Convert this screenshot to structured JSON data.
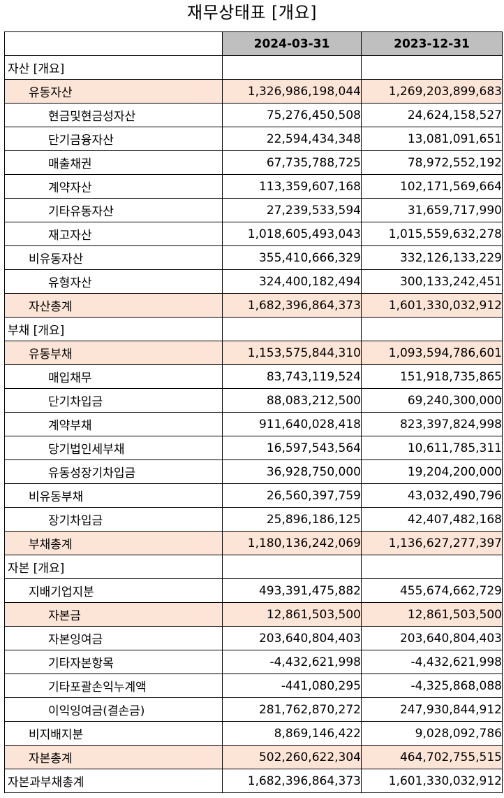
{
  "title": "재무상태표 [개요]",
  "columns": [
    "",
    "2024-03-31",
    "2023-12-31"
  ],
  "colors": {
    "header_bg": "#bfbfbf",
    "highlight_bg": "#fce4d6"
  },
  "rows": [
    {
      "label": "자산 [개요]",
      "indent": 0,
      "highlight": false,
      "v1": "",
      "v2": ""
    },
    {
      "label": "유동자산",
      "indent": 1,
      "highlight": true,
      "v1": "1,326,986,198,044",
      "v2": "1,269,203,899,683"
    },
    {
      "label": "현금및현금성자산",
      "indent": 2,
      "highlight": false,
      "v1": "75,276,450,508",
      "v2": "24,624,158,527"
    },
    {
      "label": "단기금융자산",
      "indent": 2,
      "highlight": false,
      "v1": "22,594,434,348",
      "v2": "13,081,091,651"
    },
    {
      "label": "매출채권",
      "indent": 2,
      "highlight": false,
      "v1": "67,735,788,725",
      "v2": "78,972,552,192"
    },
    {
      "label": "계약자산",
      "indent": 2,
      "highlight": false,
      "v1": "113,359,607,168",
      "v2": "102,171,569,664"
    },
    {
      "label": "기타유동자산",
      "indent": 2,
      "highlight": false,
      "v1": "27,239,533,594",
      "v2": "31,659,717,990"
    },
    {
      "label": "재고자산",
      "indent": 2,
      "highlight": false,
      "v1": "1,018,605,493,043",
      "v2": "1,015,559,632,278"
    },
    {
      "label": "비유동자산",
      "indent": 1,
      "highlight": false,
      "v1": "355,410,666,329",
      "v2": "332,126,133,229"
    },
    {
      "label": "유형자산",
      "indent": 2,
      "highlight": false,
      "v1": "324,400,182,494",
      "v2": "300,133,242,451"
    },
    {
      "label": "자산총계",
      "indent": 1,
      "highlight": true,
      "v1": "1,682,396,864,373",
      "v2": "1,601,330,032,912"
    },
    {
      "label": "부채 [개요]",
      "indent": 0,
      "highlight": false,
      "v1": "",
      "v2": ""
    },
    {
      "label": "유동부채",
      "indent": 1,
      "highlight": true,
      "v1": "1,153,575,844,310",
      "v2": "1,093,594,786,601"
    },
    {
      "label": "매입채무",
      "indent": 2,
      "highlight": false,
      "v1": "83,743,119,524",
      "v2": "151,918,735,865"
    },
    {
      "label": "단기차입금",
      "indent": 2,
      "highlight": false,
      "v1": "88,083,212,500",
      "v2": "69,240,300,000"
    },
    {
      "label": "계약부채",
      "indent": 2,
      "highlight": false,
      "v1": "911,640,028,418",
      "v2": "823,397,824,998"
    },
    {
      "label": "당기법인세부채",
      "indent": 2,
      "highlight": false,
      "v1": "16,597,543,564",
      "v2": "10,611,785,311"
    },
    {
      "label": "유동성장기차입금",
      "indent": 2,
      "highlight": false,
      "v1": "36,928,750,000",
      "v2": "19,204,200,000"
    },
    {
      "label": "비유동부채",
      "indent": 1,
      "highlight": false,
      "v1": "26,560,397,759",
      "v2": "43,032,490,796"
    },
    {
      "label": "장기차입금",
      "indent": 2,
      "highlight": false,
      "v1": "25,896,186,125",
      "v2": "42,407,482,168"
    },
    {
      "label": "부채총계",
      "indent": 1,
      "highlight": true,
      "v1": "1,180,136,242,069",
      "v2": "1,136,627,277,397"
    },
    {
      "label": "자본 [개요]",
      "indent": 0,
      "highlight": false,
      "v1": "",
      "v2": ""
    },
    {
      "label": "지배기업지분",
      "indent": 1,
      "highlight": false,
      "v1": "493,391,475,882",
      "v2": "455,674,662,729"
    },
    {
      "label": "자본금",
      "indent": 2,
      "highlight": true,
      "v1": "12,861,503,500",
      "v2": "12,861,503,500"
    },
    {
      "label": "자본잉여금",
      "indent": 2,
      "highlight": false,
      "v1": "203,640,804,403",
      "v2": "203,640,804,403"
    },
    {
      "label": "기타자본항목",
      "indent": 2,
      "highlight": false,
      "v1": "-4,432,621,998",
      "v2": "-4,432,621,998"
    },
    {
      "label": "기타포괄손익누계액",
      "indent": 2,
      "highlight": false,
      "v1": "-441,080,295",
      "v2": "-4,325,868,088"
    },
    {
      "label": "이익잉여금(결손금)",
      "indent": 2,
      "highlight": false,
      "v1": "281,762,870,272",
      "v2": "247,930,844,912"
    },
    {
      "label": "비지배지분",
      "indent": 1,
      "highlight": false,
      "v1": "8,869,146,422",
      "v2": "9,028,092,786"
    },
    {
      "label": "자본총계",
      "indent": 1,
      "highlight": true,
      "v1": "502,260,622,304",
      "v2": "464,702,755,515"
    },
    {
      "label": "자본과부채총계",
      "indent": 0,
      "highlight": false,
      "v1": "1,682,396,864,373",
      "v2": "1,601,330,032,912"
    }
  ]
}
